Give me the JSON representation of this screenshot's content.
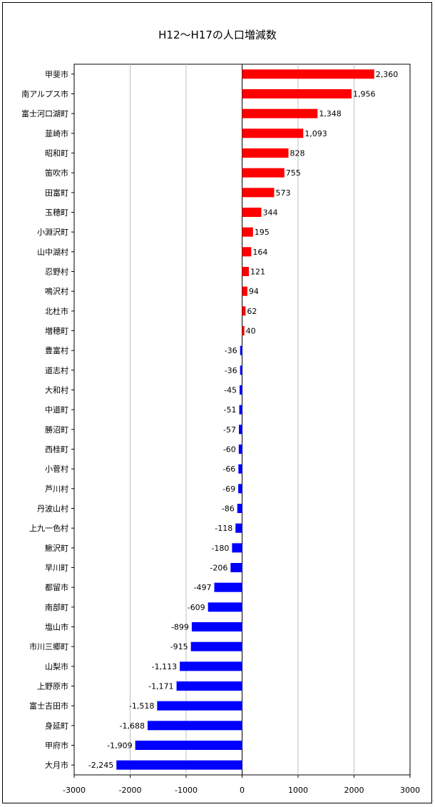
{
  "chart_data": {
    "type": "bar",
    "orientation": "horizontal",
    "title": "H12〜H17の人口増減数",
    "xlabel": "",
    "ylabel": "",
    "xlim": [
      -3000,
      3000
    ],
    "xticks": [
      "-3000",
      "-2000",
      "-1000",
      "0",
      "1000",
      "2000",
      "3000"
    ],
    "gridlines": true,
    "legend": "none",
    "colors": {
      "positive": "#ff0000",
      "negative": "#0000ff"
    },
    "categories": [
      "甲斐市",
      "南アルプス市",
      "富士河口湖町",
      "韮崎市",
      "昭和町",
      "笛吹市",
      "田富町",
      "玉穂町",
      "小淵沢町",
      "山中湖村",
      "忍野村",
      "鳴沢村",
      "北杜市",
      "増穂町",
      "豊富村",
      "道志村",
      "大和村",
      "中道町",
      "勝沼町",
      "西桂町",
      "小菅村",
      "芦川村",
      "丹波山村",
      "上九一色村",
      "鰍沢町",
      "早川町",
      "都留市",
      "南部町",
      "塩山市",
      "市川三郷町",
      "山梨市",
      "上野原市",
      "富士吉田市",
      "身延町",
      "甲府市",
      "大月市"
    ],
    "values": [
      2360,
      1956,
      1348,
      1093,
      828,
      755,
      573,
      344,
      195,
      164,
      121,
      94,
      62,
      40,
      -36,
      -36,
      -45,
      -51,
      -57,
      -60,
      -66,
      -69,
      -86,
      -118,
      -180,
      -206,
      -497,
      -609,
      -899,
      -915,
      -1113,
      -1171,
      -1518,
      -1688,
      -1909,
      -2245
    ],
    "value_labels": [
      "2,360",
      "1,956",
      "1,348",
      "1,093",
      "828",
      "755",
      "573",
      "344",
      "195",
      "164",
      "121",
      "94",
      "62",
      "40",
      "-36",
      "-36",
      "-45",
      "-51",
      "-57",
      "-60",
      "-66",
      "-69",
      "-86",
      "-118",
      "-180",
      "-206",
      "-497",
      "-609",
      "-899",
      "-915",
      "-1,113",
      "-1,171",
      "-1,518",
      "-1,688",
      "-1,909",
      "-2,245"
    ]
  }
}
